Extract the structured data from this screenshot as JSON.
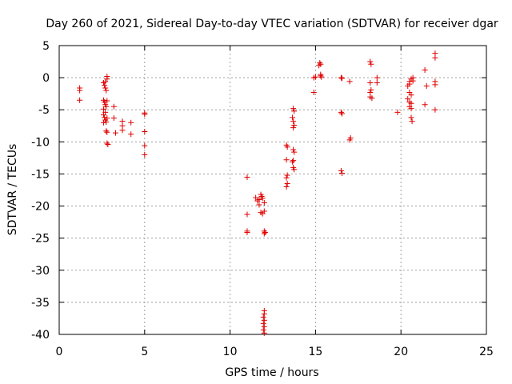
{
  "chart_data": {
    "type": "scatter",
    "title": "Day 260 of 2021, Sidereal Day-to-day VTEC variation (SDTVAR) for receiver dgar",
    "xlabel": "GPS time / hours",
    "ylabel": "SDTVAR / TECUs",
    "xlim": [
      0,
      25
    ],
    "ylim": [
      -40,
      5
    ],
    "xticks": [
      0,
      5,
      10,
      15,
      20,
      25
    ],
    "yticks": [
      5,
      0,
      -5,
      -10,
      -15,
      -20,
      -25,
      -30,
      -35,
      -40
    ],
    "grid": true,
    "series": [
      {
        "name": "dgar",
        "color": "#e00000",
        "marker": "plus",
        "points": [
          [
            1.2,
            -1.6
          ],
          [
            1.2,
            -2.0
          ],
          [
            1.2,
            -3.5
          ],
          [
            2.6,
            -0.8
          ],
          [
            2.65,
            -1.2
          ],
          [
            2.7,
            -1.6
          ],
          [
            2.75,
            -2.0
          ],
          [
            2.8,
            0.2
          ],
          [
            2.8,
            -0.2
          ],
          [
            2.7,
            -0.6
          ],
          [
            2.6,
            -3.5
          ],
          [
            2.65,
            -3.8
          ],
          [
            2.7,
            -4.2
          ],
          [
            2.75,
            -4.5
          ],
          [
            2.6,
            -4.9
          ],
          [
            2.8,
            -3.6
          ],
          [
            2.6,
            -5.8
          ],
          [
            2.65,
            -6.2
          ],
          [
            2.7,
            -6.6
          ],
          [
            2.75,
            -6.9
          ],
          [
            2.6,
            -7.0
          ],
          [
            2.8,
            -6.3
          ],
          [
            2.7,
            -5.4
          ],
          [
            2.75,
            -8.3
          ],
          [
            2.8,
            -8.5
          ],
          [
            2.8,
            -10.2
          ],
          [
            2.85,
            -10.4
          ],
          [
            3.2,
            -4.5
          ],
          [
            3.2,
            -6.3
          ],
          [
            3.3,
            -8.6
          ],
          [
            3.7,
            -6.8
          ],
          [
            3.7,
            -7.5
          ],
          [
            3.7,
            -8.2
          ],
          [
            4.2,
            -7.0
          ],
          [
            4.2,
            -8.8
          ],
          [
            5.0,
            -5.5
          ],
          [
            5.0,
            -5.7
          ],
          [
            5.0,
            -8.4
          ],
          [
            5.0,
            -10.6
          ],
          [
            5.0,
            -12.0
          ],
          [
            11.0,
            -15.5
          ],
          [
            11.0,
            -21.3
          ],
          [
            11.0,
            -23.9
          ],
          [
            11.0,
            -24.1
          ],
          [
            11.5,
            -18.7
          ],
          [
            11.6,
            -19.2
          ],
          [
            11.7,
            -19.0
          ],
          [
            11.8,
            -18.2
          ],
          [
            11.9,
            -18.8
          ],
          [
            12.0,
            -19.5
          ],
          [
            11.7,
            -19.8
          ],
          [
            11.85,
            -18.5
          ],
          [
            11.8,
            -21.0
          ],
          [
            11.9,
            -21.2
          ],
          [
            12.0,
            -20.8
          ],
          [
            12.0,
            -23.9
          ],
          [
            12.05,
            -24.1
          ],
          [
            12.0,
            -24.3
          ],
          [
            12.0,
            -36.3
          ],
          [
            12.0,
            -36.8
          ],
          [
            11.95,
            -37.3
          ],
          [
            12.0,
            -37.8
          ],
          [
            11.95,
            -38.3
          ],
          [
            12.0,
            -38.8
          ],
          [
            11.95,
            -39.3
          ],
          [
            12.0,
            -39.8
          ],
          [
            13.3,
            -10.5
          ],
          [
            13.35,
            -10.8
          ],
          [
            13.3,
            -12.8
          ],
          [
            13.35,
            -15.2
          ],
          [
            13.3,
            -15.6
          ],
          [
            13.35,
            -16.5
          ],
          [
            13.3,
            -17.0
          ],
          [
            13.7,
            -4.8
          ],
          [
            13.75,
            -5.2
          ],
          [
            13.65,
            -6.2
          ],
          [
            13.7,
            -6.8
          ],
          [
            13.75,
            -7.4
          ],
          [
            13.7,
            -7.8
          ],
          [
            13.7,
            -11.2
          ],
          [
            13.75,
            -11.6
          ],
          [
            13.7,
            -12.9
          ],
          [
            13.65,
            -13.1
          ],
          [
            13.7,
            -14.0
          ],
          [
            13.75,
            -14.3
          ],
          [
            14.9,
            0.0
          ],
          [
            14.9,
            -2.3
          ],
          [
            15.0,
            0.1
          ],
          [
            15.2,
            1.9
          ],
          [
            15.25,
            2.3
          ],
          [
            15.3,
            2.1
          ],
          [
            15.3,
            0.3
          ],
          [
            15.35,
            0.1
          ],
          [
            15.3,
            0.5
          ],
          [
            16.5,
            0.0
          ],
          [
            16.55,
            -0.1
          ],
          [
            16.5,
            -5.4
          ],
          [
            16.55,
            -5.6
          ],
          [
            16.5,
            -14.5
          ],
          [
            16.55,
            -14.9
          ],
          [
            17.0,
            -0.6
          ],
          [
            17.05,
            -9.4
          ],
          [
            17.0,
            -9.7
          ],
          [
            18.2,
            2.5
          ],
          [
            18.25,
            2.1
          ],
          [
            18.2,
            -0.8
          ],
          [
            18.25,
            -1.9
          ],
          [
            18.2,
            -2.3
          ],
          [
            18.2,
            -3.0
          ],
          [
            18.3,
            -3.2
          ],
          [
            18.6,
            0.0
          ],
          [
            18.6,
            -0.8
          ],
          [
            19.8,
            -5.4
          ],
          [
            20.4,
            -1.3
          ],
          [
            20.5,
            -1.0
          ],
          [
            20.5,
            -2.3
          ],
          [
            20.6,
            -2.7
          ],
          [
            20.4,
            -3.3
          ],
          [
            20.5,
            -3.8
          ],
          [
            20.6,
            -4.0
          ],
          [
            20.5,
            -4.5
          ],
          [
            20.6,
            -4.8
          ],
          [
            20.5,
            -0.6
          ],
          [
            20.6,
            -0.2
          ],
          [
            20.7,
            0.0
          ],
          [
            20.7,
            -0.5
          ],
          [
            20.6,
            -6.2
          ],
          [
            20.65,
            -6.8
          ],
          [
            21.4,
            1.2
          ],
          [
            21.5,
            -1.3
          ],
          [
            21.4,
            -4.2
          ],
          [
            22.0,
            3.8
          ],
          [
            22.0,
            3.1
          ],
          [
            22.0,
            -0.6
          ],
          [
            22.0,
            -1.1
          ],
          [
            22.0,
            -5.0
          ]
        ]
      }
    ]
  }
}
